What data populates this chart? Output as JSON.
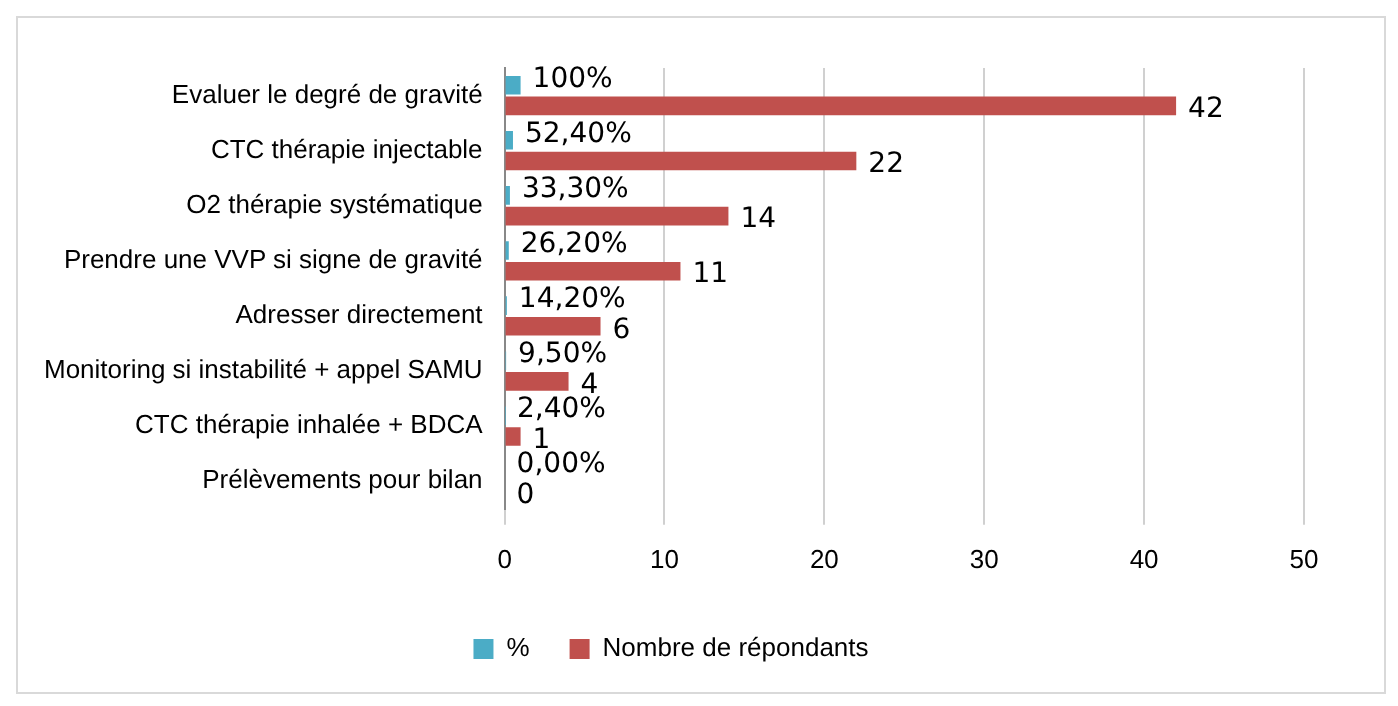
{
  "chart_data": {
    "type": "bar",
    "orientation": "horizontal",
    "categories": [
      "Evaluer le degré de gravité",
      "CTC thérapie injectable",
      "O2 thérapie systématique",
      "Prendre une VVP si signe de gravité",
      "Adresser directement",
      "Monitoring si instabilité + appel SAMU",
      "CTC thérapie inhalée + BDCA",
      "Prélèvements pour bilan"
    ],
    "series": [
      {
        "name": "%",
        "color": "#4bacc6",
        "values": [
          1,
          0.524,
          0.333,
          0.262,
          0.142,
          0.095,
          0.024,
          0
        ],
        "value_labels": [
          "100%",
          "52,40%",
          "33,30%",
          "26,20%",
          "14,20%",
          "9,50%",
          "2,40%",
          "0,00%"
        ]
      },
      {
        "name": "Nombre de répondants",
        "color": "#c0504d",
        "values": [
          42,
          22,
          14,
          11,
          6,
          4,
          1,
          0
        ],
        "value_labels": [
          "42",
          "22",
          "14",
          "11",
          "6",
          "4",
          "1",
          "0"
        ]
      }
    ],
    "xlim": [
      0,
      50
    ],
    "xticks": [
      0,
      10,
      20,
      30,
      40,
      50
    ],
    "grid": "x",
    "legend": "bottom"
  }
}
